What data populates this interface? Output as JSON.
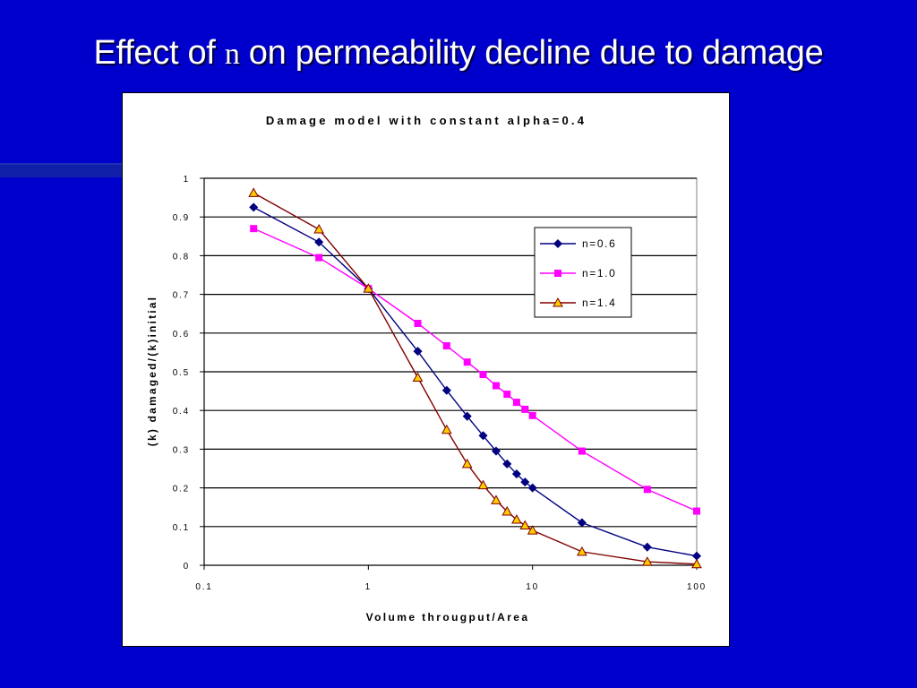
{
  "slide": {
    "title_prefix": "Effect of ",
    "title_variable": "n",
    "title_suffix": " on permeability decline due to damage"
  },
  "chart_data": {
    "type": "line",
    "title": "Damage model with constant alpha=0.4",
    "xlabel": "Volume througput/Area",
    "ylabel": "(k) damaged/(k)initial",
    "x_scale": "log",
    "xlim": [
      0.1,
      100
    ],
    "ylim": [
      0,
      1
    ],
    "x_ticks": [
      0.1,
      1,
      10,
      100
    ],
    "x_tick_labels": [
      "0.1",
      "1",
      "10",
      "100"
    ],
    "y_ticks": [
      0,
      0.1,
      0.2,
      0.3,
      0.4,
      0.5,
      0.6,
      0.7,
      0.8,
      0.9,
      1
    ],
    "y_tick_labels": [
      "0",
      "0.1",
      "0.2",
      "0.3",
      "0.4",
      "0.5",
      "0.6",
      "0.7",
      "0.8",
      "0.9",
      "1"
    ],
    "grid": "horizontal",
    "legend_position": "top-right",
    "series": [
      {
        "name": "n=0.6",
        "color": "#000080",
        "line_color": "#000080",
        "marker": "diamond",
        "x": [
          0.2,
          0.5,
          1,
          2,
          3,
          4,
          5,
          6,
          7,
          8,
          9,
          10,
          20,
          50,
          100
        ],
        "y": [
          0.925,
          0.835,
          0.715,
          0.553,
          0.452,
          0.385,
          0.335,
          0.295,
          0.262,
          0.236,
          0.215,
          0.2,
          0.11,
          0.047,
          0.024
        ]
      },
      {
        "name": "n=1.0",
        "color": "#ff00ff",
        "line_color": "#ff00ff",
        "marker": "square",
        "x": [
          0.2,
          0.5,
          1,
          2,
          3,
          4,
          5,
          6,
          7,
          8,
          9,
          10,
          20,
          50,
          100
        ],
        "y": [
          0.87,
          0.795,
          0.715,
          0.625,
          0.567,
          0.525,
          0.493,
          0.464,
          0.442,
          0.421,
          0.403,
          0.387,
          0.295,
          0.196,
          0.14
        ]
      },
      {
        "name": "n=1.4",
        "color": "#ffcc00",
        "line_color": "#800000",
        "marker": "triangle",
        "x": [
          0.2,
          0.5,
          1,
          2,
          3,
          4,
          5,
          6,
          7,
          8,
          9,
          10,
          20,
          50,
          100
        ],
        "y": [
          0.962,
          0.868,
          0.715,
          0.485,
          0.35,
          0.262,
          0.207,
          0.168,
          0.139,
          0.118,
          0.103,
          0.09,
          0.035,
          0.009,
          0.003
        ]
      }
    ]
  }
}
